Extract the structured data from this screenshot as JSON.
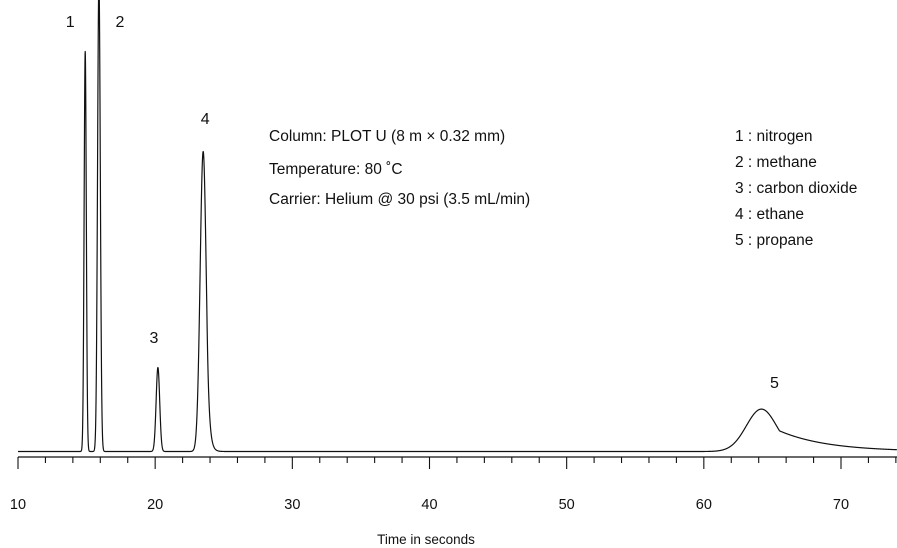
{
  "chart_data": {
    "type": "line",
    "title": "",
    "xlabel": "Time in seconds",
    "ylabel": "",
    "xlim": [
      10,
      75
    ],
    "x_ticks": [
      10,
      20,
      30,
      40,
      50,
      60,
      70
    ],
    "x_minor_tick_step": 2,
    "y_axis_visible": false,
    "grid": false,
    "line_color": "#111111",
    "baseline": 0,
    "ylim": [
      0,
      110
    ],
    "peaks": [
      {
        "label": "1",
        "rt": 14.9,
        "height": 100,
        "width": 0.08,
        "tail": 0
      },
      {
        "label": "2",
        "rt": 15.9,
        "height": 118,
        "width": 0.1,
        "tail": 0
      },
      {
        "label": "3",
        "rt": 20.2,
        "height": 21,
        "width": 0.13,
        "tail": 0
      },
      {
        "label": "4",
        "rt": 23.5,
        "height": 75,
        "width": 0.22,
        "tail": 0.15
      },
      {
        "label": "5",
        "rt": 64.2,
        "height": 10.6,
        "width": 1.1,
        "tail": 3.5
      }
    ],
    "column_info": [
      "Column: PLOT U (8 m × 0.32 mm)",
      "Temperature: 80 ˚C",
      "Carrier: Helium @ 30 psi (3.5 mL/min)"
    ],
    "legend": [
      "1 : nitrogen",
      "2 : methane",
      "3 : carbon dioxide",
      "4 : ethane",
      "5 : propane"
    ]
  }
}
